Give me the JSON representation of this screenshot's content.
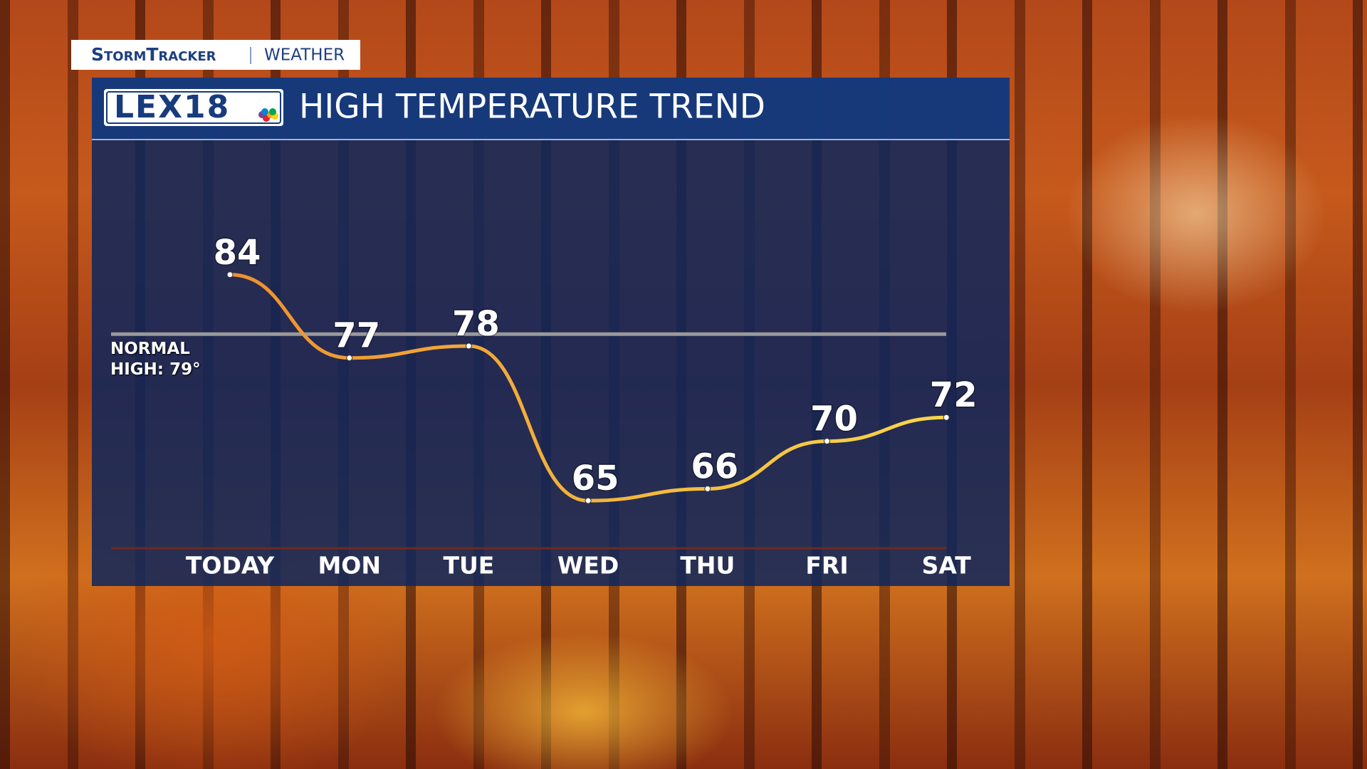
{
  "brand": {
    "stormtracker": "StormTracker",
    "weather": "WEATHER",
    "logo": "LEX18"
  },
  "chart_data": {
    "type": "line",
    "title": "HIGH TEMPERATURE TREND",
    "categories": [
      "TODAY",
      "MON",
      "TUE",
      "WED",
      "THU",
      "FRI",
      "SAT"
    ],
    "values": [
      84,
      77,
      78,
      65,
      66,
      70,
      72
    ],
    "colors": [
      "#ef902f",
      "#f7d64a"
    ],
    "ylim": [
      61,
      95
    ],
    "normal_high": {
      "value": 79,
      "label": "NORMAL HIGH: 79°"
    }
  }
}
